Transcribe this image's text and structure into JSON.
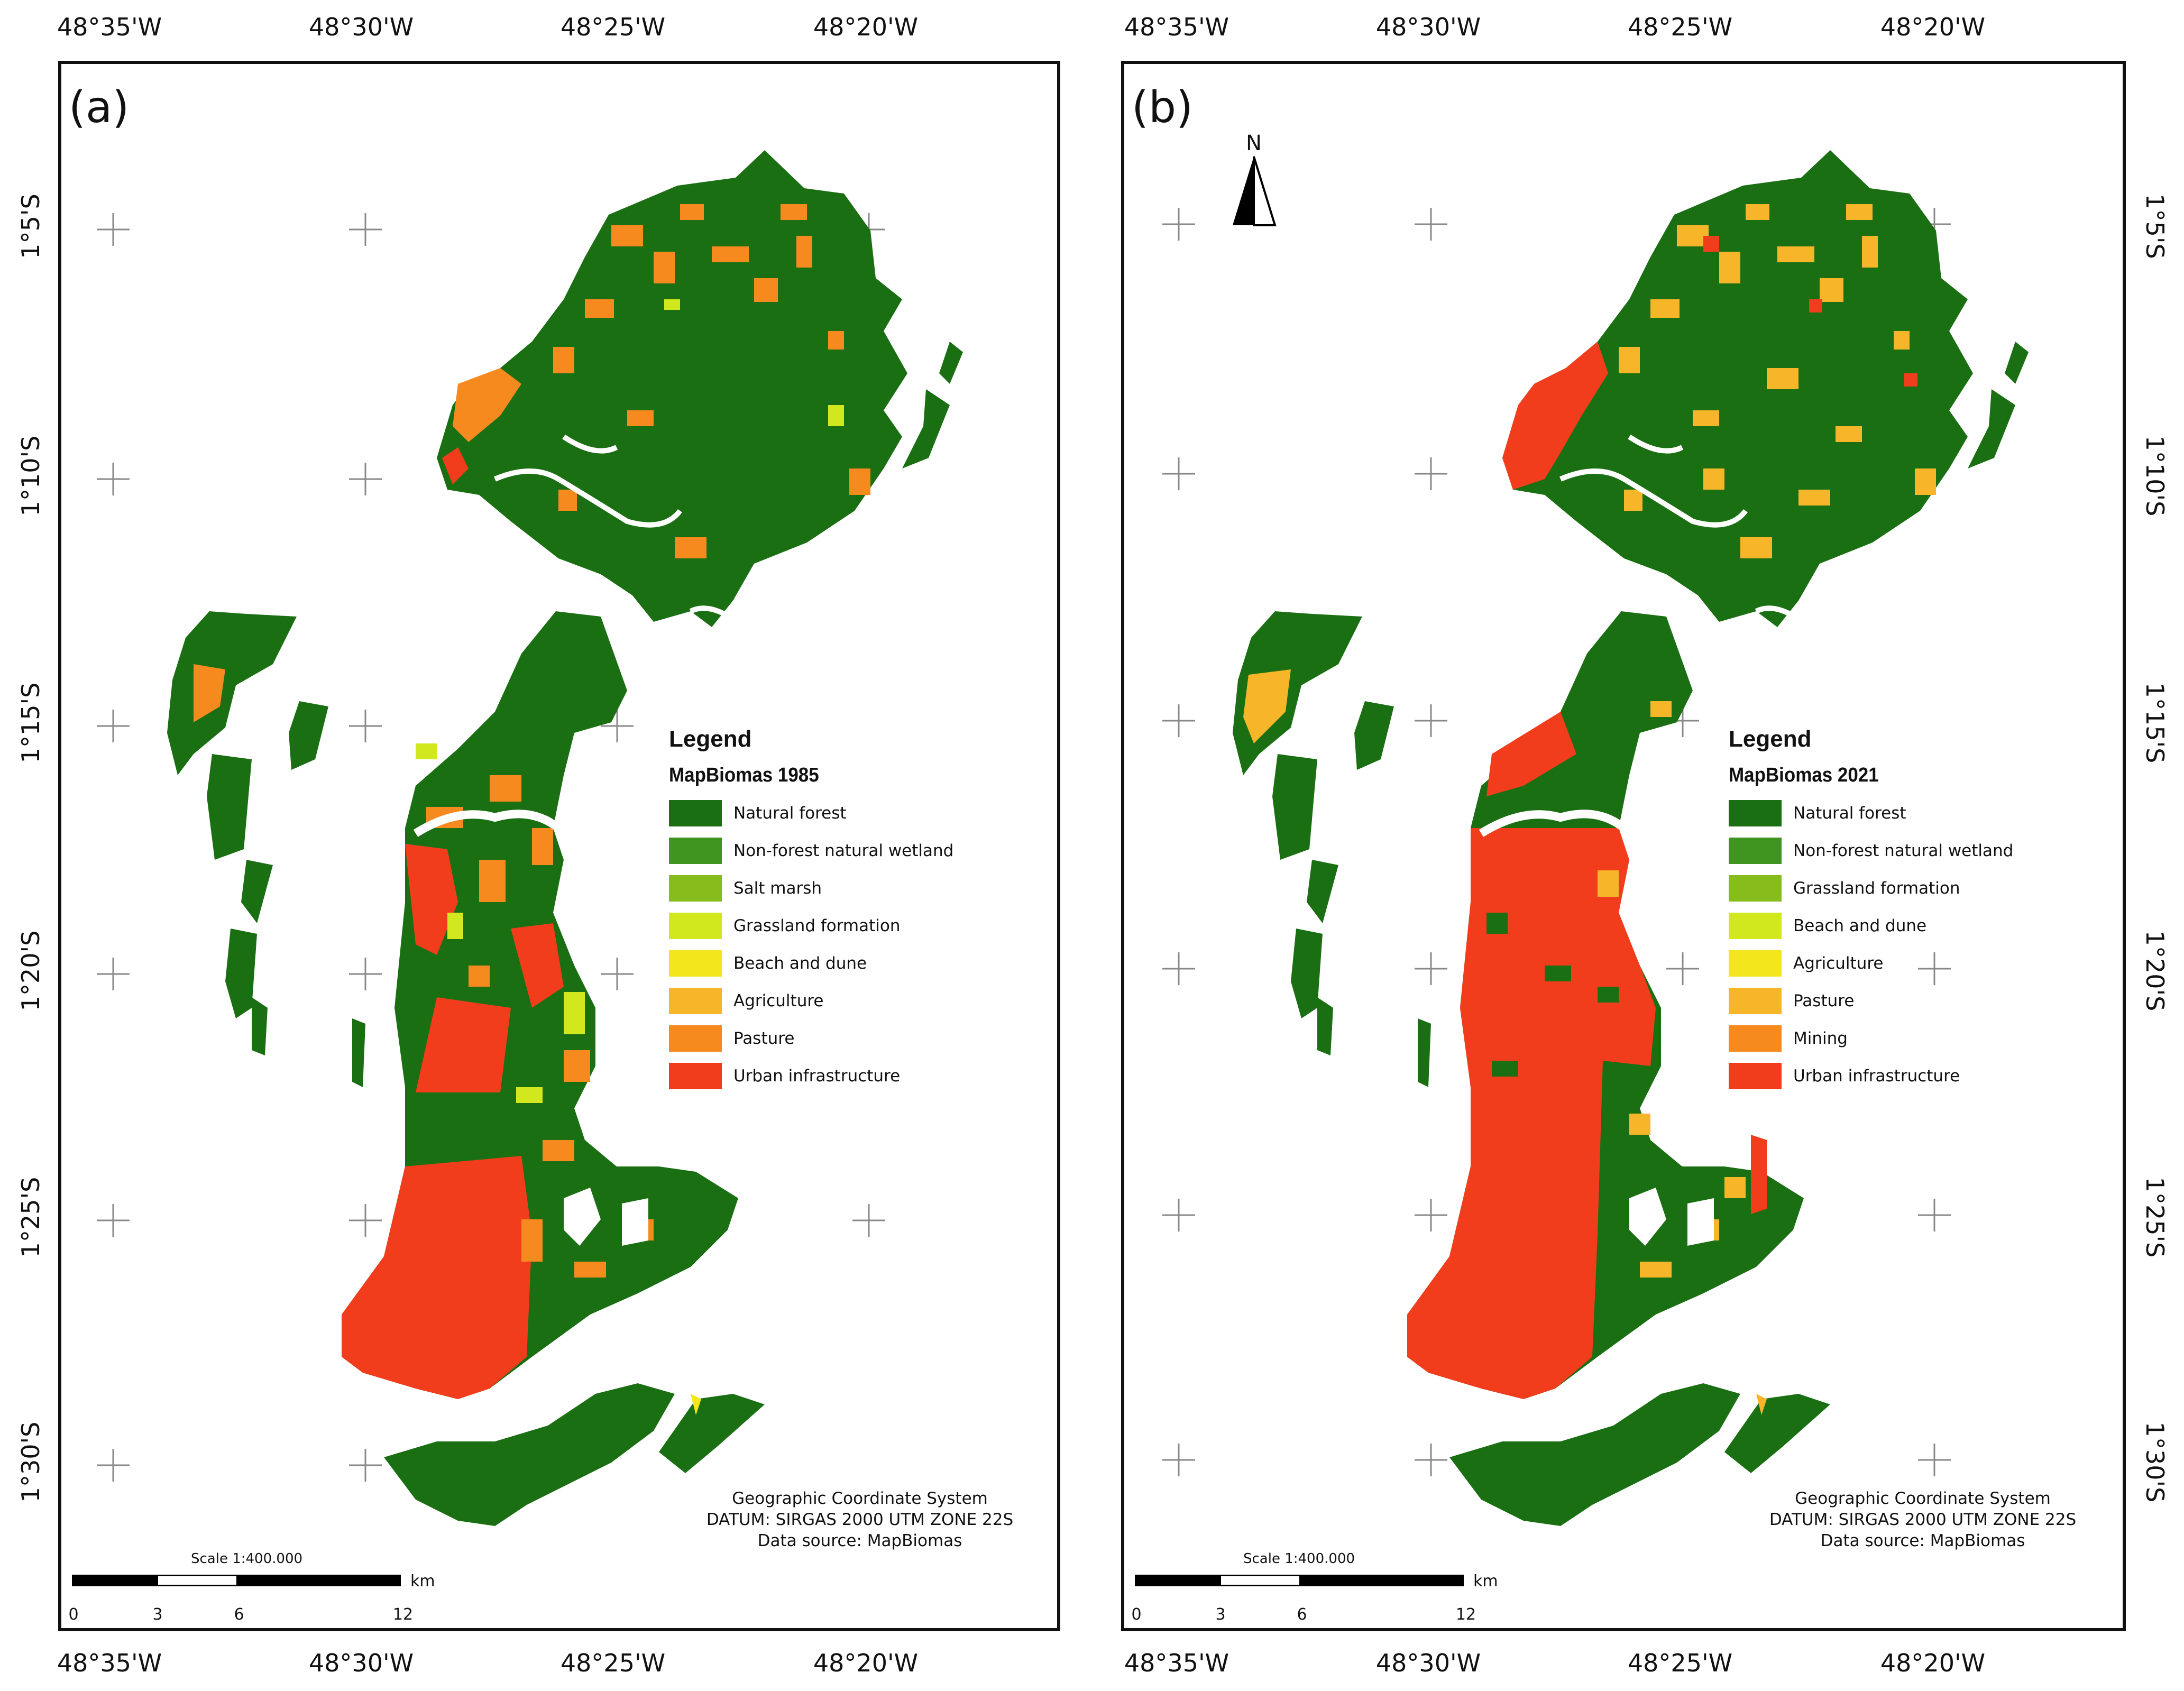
{
  "longitude_labels": [
    "48°35'W",
    "48°30'W",
    "48°25'W",
    "48°20'W"
  ],
  "latitude_labels": [
    "1°5'S",
    "1°10'S",
    "1°15'S",
    "1°20'S",
    "1°25'S",
    "1°30'S"
  ],
  "colors": {
    "natural_forest": "#1a6f12",
    "non_forest_natural_wetland": "#3f951f",
    "salt_marsh": "#86bd1c",
    "grassland_formation": "#d1e81f",
    "beach_and_dune": "#f3e61c",
    "agriculture": "#f7b52a",
    "pasture": "#f68a1f",
    "mining": "#f27a1b",
    "urban_infrastructure": "#f23d1d",
    "water": "#ffffff"
  },
  "panel_a": {
    "label": "(a)",
    "legend_title": "Legend",
    "legend_subtitle": "MapBiomas 1985",
    "legend_items": [
      {
        "label": "Natural forest",
        "color": "#1a6f12"
      },
      {
        "label": "Non-forest natural wetland",
        "color": "#3f951f"
      },
      {
        "label": "Salt marsh",
        "color": "#86bd1c"
      },
      {
        "label": "Grassland formation",
        "color": "#d1e81f"
      },
      {
        "label": "Beach and dune",
        "color": "#f3e61c"
      },
      {
        "label": "Agriculture",
        "color": "#f7b52a"
      },
      {
        "label": "Pasture",
        "color": "#f68a1f"
      },
      {
        "label": "Urban infrastructure",
        "color": "#f23d1d"
      }
    ],
    "info_line1": "Geographic Coordinate System",
    "info_line2": "DATUM: SIRGAS 2000 UTM ZONE 22S",
    "info_line3": "Data source: MapBiomas",
    "scale_title": "Scale 1:400.000",
    "scale_unit": "km",
    "scale_ticks": [
      "0",
      "3",
      "6",
      "12"
    ]
  },
  "panel_b": {
    "label": "(b)",
    "north_label": "N",
    "legend_title": "Legend",
    "legend_subtitle": "MapBiomas 2021",
    "legend_items": [
      {
        "label": "Natural forest",
        "color": "#1a6f12"
      },
      {
        "label": "Non-forest natural wetland",
        "color": "#3f951f"
      },
      {
        "label": "Grassland formation",
        "color": "#86bd1c"
      },
      {
        "label": "Beach and dune",
        "color": "#d1e81f"
      },
      {
        "label": "Agriculture",
        "color": "#f3e61c"
      },
      {
        "label": "Pasture",
        "color": "#f7b52a"
      },
      {
        "label": "Mining",
        "color": "#f68a1f"
      },
      {
        "label": "Urban infrastructure",
        "color": "#f23d1d"
      }
    ],
    "info_line1": "Geographic Coordinate System",
    "info_line2": "DATUM: SIRGAS 2000 UTM ZONE 22S",
    "info_line3": "Data source: MapBiomas",
    "scale_title": "Scale 1:400.000",
    "scale_unit": "km",
    "scale_ticks": [
      "0",
      "3",
      "6",
      "12"
    ]
  }
}
